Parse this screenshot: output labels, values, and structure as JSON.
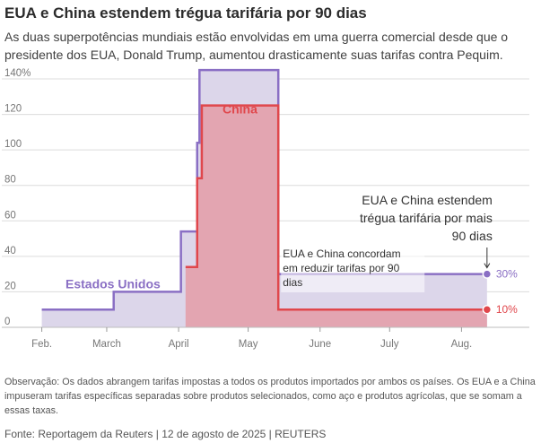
{
  "header": {
    "title": "EUA e China estendem trégua tarifária por 90 dias",
    "subtitle": "As duas superpotências mundiais estão envolvidas em uma guerra comercial desde que o presidente dos EUA, Donald Trump, aumentou drasticamente suas tarifas contra Pequim."
  },
  "chart_data": {
    "type": "area",
    "title": "EUA e China estendem trégua tarifária por 90 dias",
    "ylim": [
      0,
      145
    ],
    "yticks": [
      0,
      20,
      40,
      60,
      80,
      100,
      120,
      140
    ],
    "ytick_labels": [
      "0",
      "20",
      "40",
      "60",
      "80",
      "100",
      "120",
      "140%"
    ],
    "xticks": [
      "2025-02-01",
      "2025-03-01",
      "2025-04-01",
      "2025-05-01",
      "2025-06-01",
      "2025-07-01",
      "2025-08-01"
    ],
    "xtick_labels": [
      "Feb.",
      "March",
      "April",
      "May",
      "June",
      "July",
      "Aug."
    ],
    "xlim": [
      "2025-01-31",
      "2025-08-14"
    ],
    "grid": true,
    "series": [
      {
        "name": "Estados Unidos",
        "color": "#8a6fc4",
        "fill": "#dcd6ea",
        "steps": [
          {
            "x": "2025-02-01",
            "y": 10
          },
          {
            "x": "2025-03-04",
            "y": 20
          },
          {
            "x": "2025-04-02",
            "y": 54
          },
          {
            "x": "2025-04-09",
            "y": 104
          },
          {
            "x": "2025-04-10",
            "y": 145
          },
          {
            "x": "2025-05-14",
            "y": 30
          },
          {
            "x": "2025-08-12",
            "y": 30
          }
        ],
        "end_label": "30%"
      },
      {
        "name": "China",
        "color": "#e0474c",
        "fill": "#e3a5b1",
        "steps": [
          {
            "x": "2025-04-04",
            "y": 34
          },
          {
            "x": "2025-04-09",
            "y": 84
          },
          {
            "x": "2025-04-11",
            "y": 125
          },
          {
            "x": "2025-05-14",
            "y": 10
          },
          {
            "x": "2025-08-12",
            "y": 10
          }
        ],
        "end_label": "10%"
      }
    ],
    "annotations": [
      {
        "text_lines": [
          "EUA e China concordam",
          "em reduzir tarifas por 90",
          "dias"
        ],
        "at": "2025-05-14"
      },
      {
        "text_lines": [
          "EUA e China estendem",
          "trégua tarifária por mais",
          "90 dias"
        ],
        "at": "2025-08-12"
      }
    ]
  },
  "colors": {
    "us_line": "#8a6fc4",
    "us_fill": "#dcd6ea",
    "china_line": "#e0474c",
    "china_fill": "#e3a5b1",
    "grid": "#dcdcdc"
  },
  "footer": {
    "note": "Observação: Os dados abrangem tarifas impostas a todos os produtos importados por ambos os países. Os EUA e a China impuseram tarifas específicas separadas sobre produtos selecionados, como aço e produtos agrícolas, que se somam a essas taxas.",
    "source": "Fonte: Reportagem da Reuters | 12 de agosto de 2025 | REUTERS"
  }
}
